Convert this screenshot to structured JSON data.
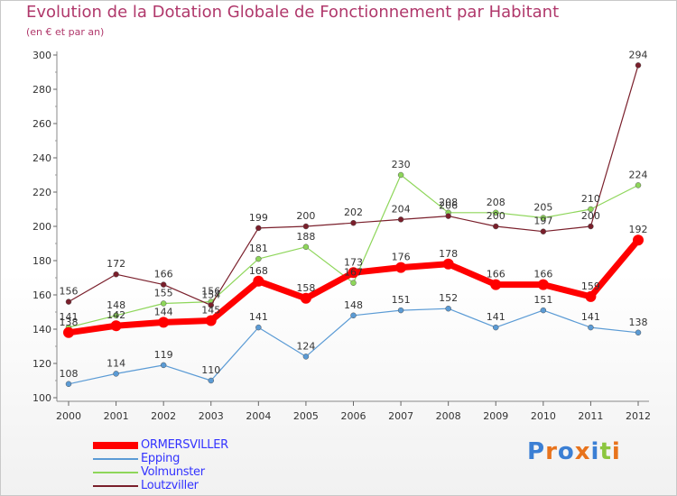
{
  "title": "Evolution de la Dotation Globale de Fonctionnement par Habitant",
  "subtitle": "(en € et par an)",
  "logo": {
    "text": "Proxiti",
    "colors": [
      "#3b7fd4",
      "#e8731c",
      "#3b7fd4",
      "#e8731c",
      "#3b7fd4",
      "#8cc63f",
      "#e8731c"
    ]
  },
  "chart_data": {
    "type": "line",
    "x": [
      "2000",
      "2001",
      "2002",
      "2003",
      "2004",
      "2005",
      "2006",
      "2007",
      "2008",
      "2009",
      "2010",
      "2011",
      "2012"
    ],
    "y_ticks": [
      "100",
      "120",
      "140",
      "160",
      "180",
      "200",
      "220",
      "240",
      "260",
      "280",
      "300"
    ],
    "ylim": [
      100,
      300
    ],
    "grid": false,
    "legend_position": "bottom-left",
    "series": [
      {
        "name": "ORMERSVILLER",
        "color": "#ff0000",
        "label_color": "#3333ff",
        "values": [
          138,
          142,
          144,
          145,
          168,
          158,
          173,
          176,
          178,
          166,
          166,
          159,
          192
        ],
        "labels": [
          "138",
          "142",
          "144",
          "145",
          "168",
          "158",
          "173",
          "176",
          "178",
          "166",
          "166",
          "159",
          "192"
        ]
      },
      {
        "name": "Epping",
        "color": "#5b9bd5",
        "label_color": "#3333ff",
        "values": [
          108,
          114,
          119,
          110,
          141,
          124,
          148,
          151,
          152,
          141,
          151,
          141,
          138
        ],
        "labels": [
          "108",
          "114",
          "119",
          "110",
          "141",
          "124",
          "148",
          "151",
          "152",
          "141",
          "151",
          "141",
          "138"
        ]
      },
      {
        "name": "Volmunster",
        "color": "#8ed65a",
        "label_color": "#3333ff",
        "values": [
          141,
          148,
          155,
          156,
          181,
          188,
          167,
          230,
          208,
          208,
          205,
          210,
          224
        ],
        "labels": [
          "141",
          "148",
          "155",
          "156",
          "181",
          "188",
          "167",
          "230",
          "208",
          "208",
          "205",
          "210",
          "224"
        ]
      },
      {
        "name": "Loutzviller",
        "color": "#7a1f2b",
        "label_color": "#3333ff",
        "values": [
          156,
          172,
          166,
          154,
          199,
          200,
          202,
          204,
          206,
          200,
          197,
          200,
          294
        ],
        "labels": [
          "156",
          "172",
          "166",
          "154",
          "199",
          "200",
          "202",
          "204",
          "206",
          "200",
          "197",
          "200",
          "294"
        ]
      }
    ]
  }
}
